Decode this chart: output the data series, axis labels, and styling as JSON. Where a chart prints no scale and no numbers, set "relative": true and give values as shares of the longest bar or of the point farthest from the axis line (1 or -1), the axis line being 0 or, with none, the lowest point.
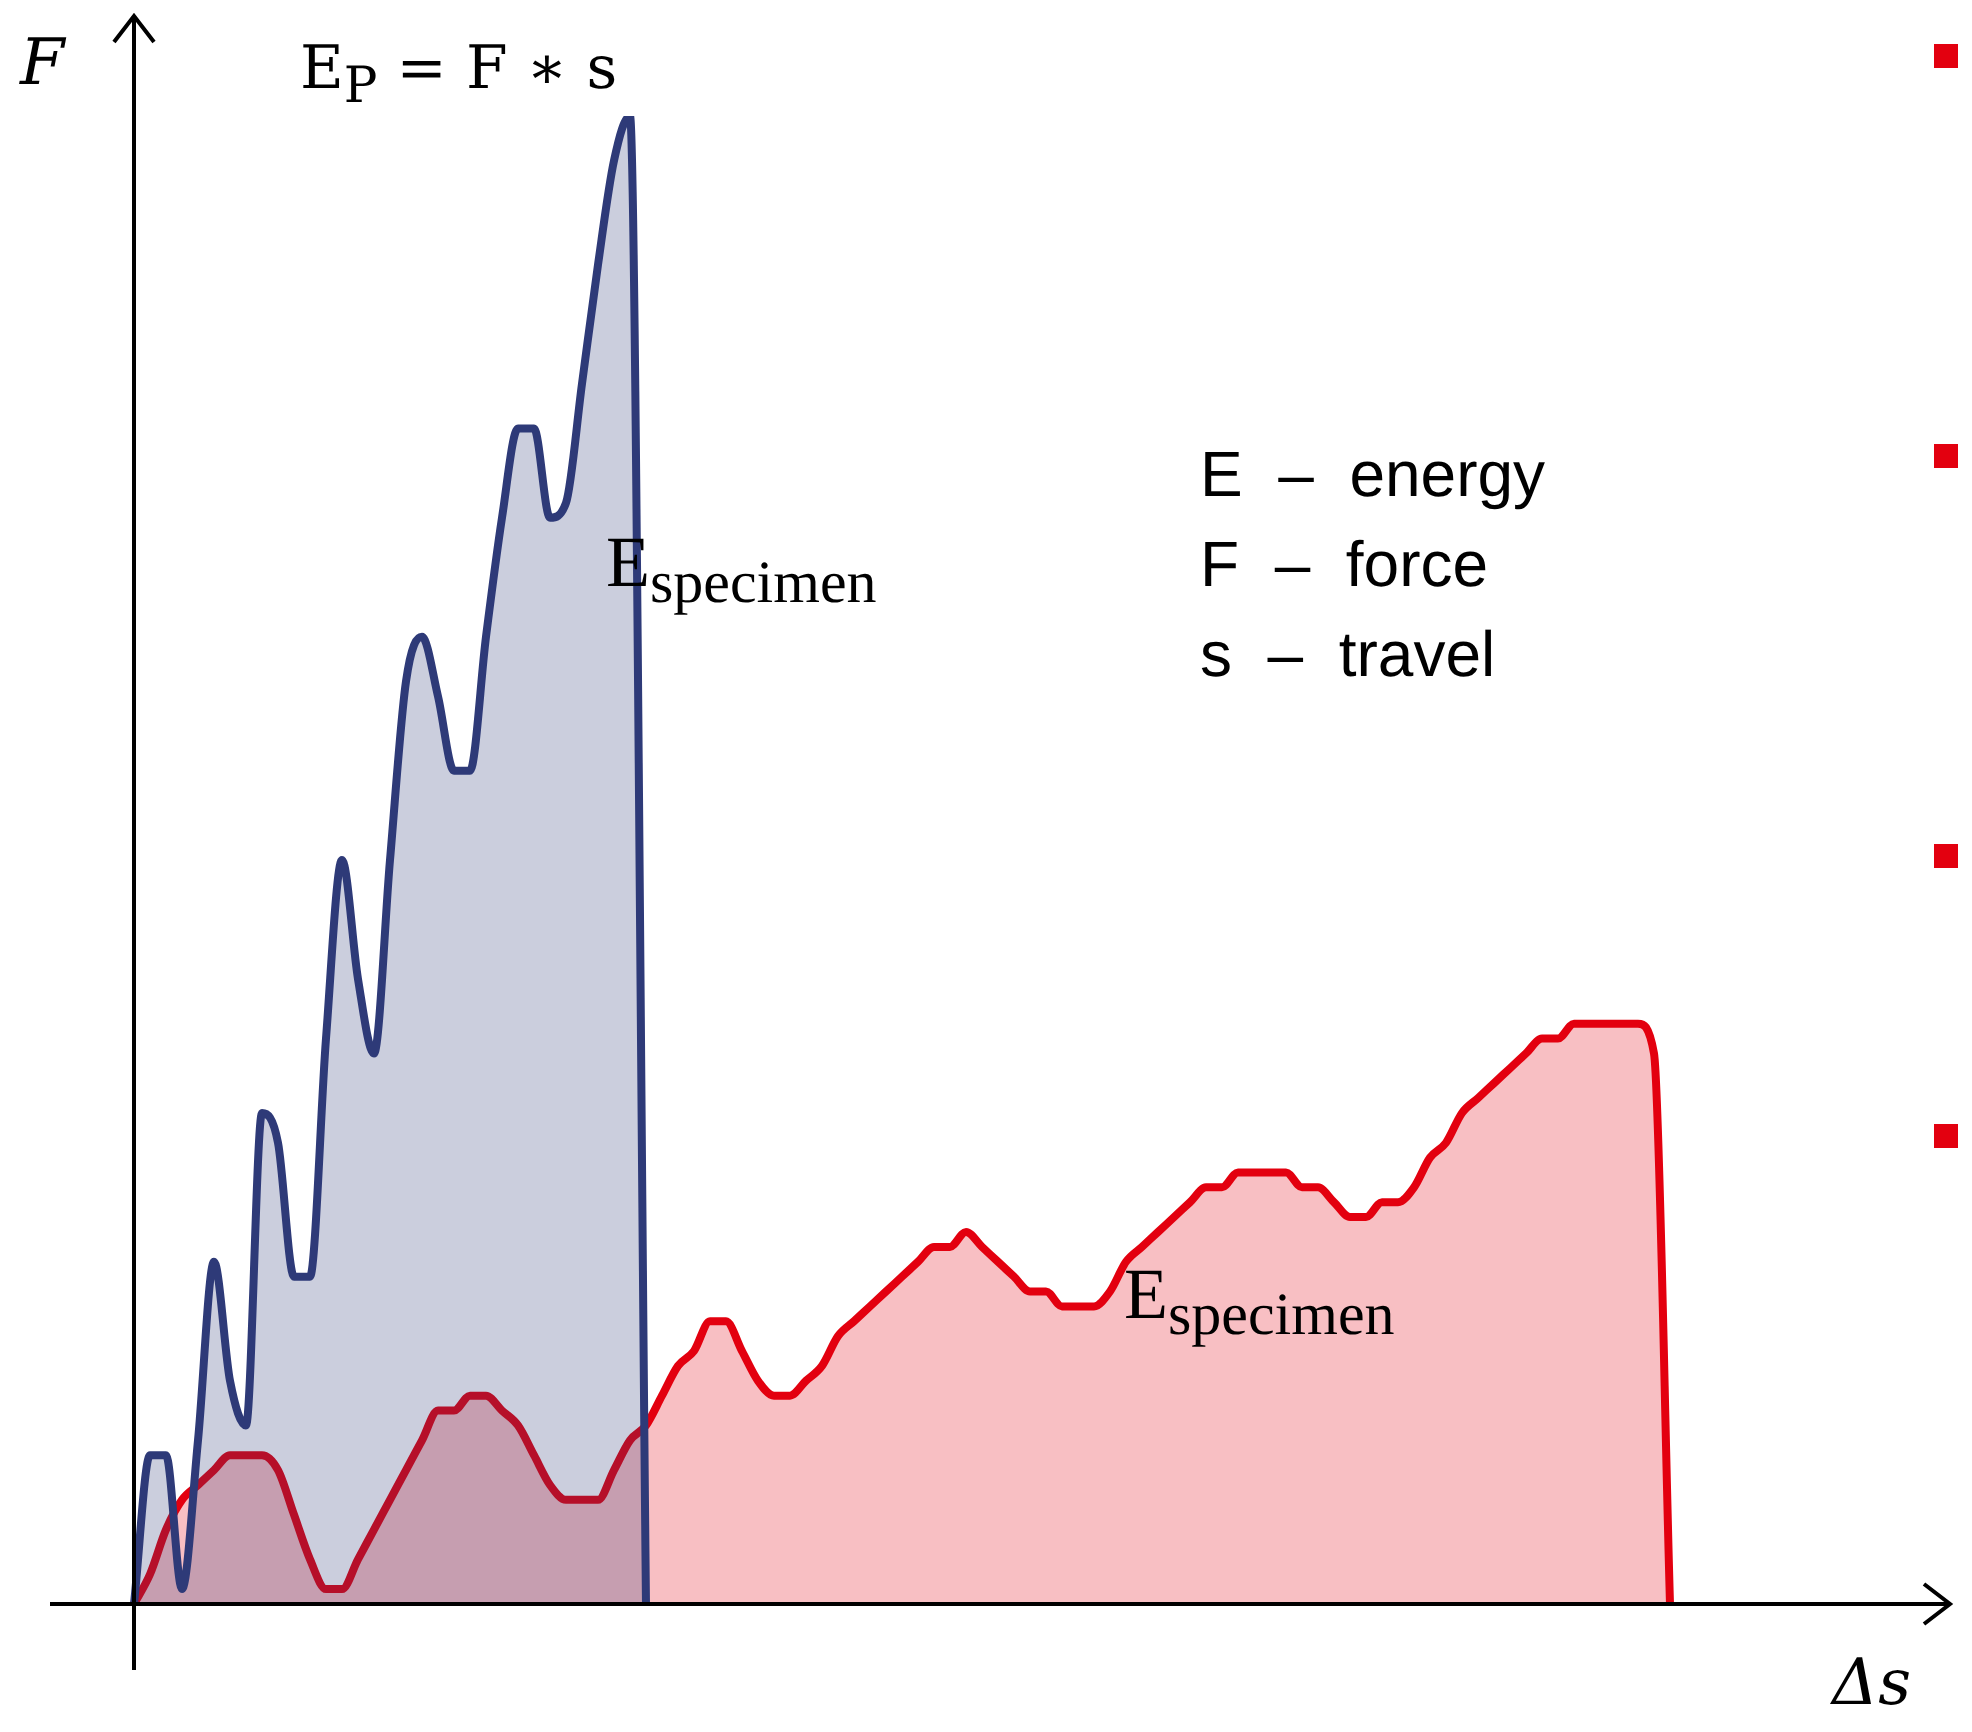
{
  "chart_data": {
    "type": "area",
    "relative": true,
    "xlabel": "Δs",
    "ylabel": "F",
    "legend": false,
    "marker": "none",
    "categories": [
      null,
      null,
      null,
      null,
      null,
      null,
      null,
      null,
      null,
      null,
      null,
      null,
      null,
      null,
      null,
      null,
      null,
      null,
      null,
      null,
      null,
      null,
      null,
      null,
      null,
      null,
      null,
      null,
      null,
      null,
      null,
      null,
      null,
      null,
      null,
      null,
      null,
      null,
      null,
      null,
      null,
      null,
      null,
      null,
      null,
      null,
      null,
      null,
      null,
      null,
      null,
      null,
      null,
      null,
      null,
      null,
      null,
      null,
      null,
      null,
      null,
      null,
      null,
      null,
      null,
      null,
      null,
      null,
      null,
      null,
      null,
      null,
      null,
      null,
      null,
      null,
      null,
      null,
      null,
      null,
      null,
      null,
      null,
      null,
      null,
      null,
      null,
      null,
      null,
      null,
      null,
      null,
      null,
      null,
      null,
      null,
      null
    ],
    "series": [
      {
        "color": "#2e3a78",
        "values": [
          0,
          0.1,
          0.1,
          0.01,
          0.11,
          0.23,
          0.15,
          0.12,
          0.33,
          0.31,
          0.22,
          0.22,
          0.38,
          0.5,
          0.42,
          0.37,
          0.5,
          0.62,
          0.65,
          0.61,
          0.56,
          0.56,
          0.65,
          0.73,
          0.79,
          0.79,
          0.73,
          0.74,
          0.82,
          0.9,
          0.97,
          1,
          0,
          null,
          null,
          null,
          null,
          null,
          null,
          null,
          null,
          null,
          null,
          null,
          null,
          null,
          null,
          null,
          null,
          null,
          null,
          null,
          null,
          null,
          null,
          null,
          null,
          null,
          null,
          null,
          null,
          null,
          null,
          null,
          null,
          null,
          null,
          null,
          null,
          null,
          null,
          null,
          null,
          null,
          null,
          null,
          null,
          null,
          null,
          null,
          null,
          null,
          null,
          null,
          null,
          null,
          null,
          null,
          null,
          null,
          null,
          null,
          null,
          null,
          null,
          null,
          null
        ]
      },
      {
        "color": "#e3000f",
        "values": [
          0,
          0.02,
          0.05,
          0.07,
          0.08,
          0.09,
          0.1,
          0.1,
          0.1,
          0.09,
          0.06,
          0.03,
          0.01,
          0.01,
          0.03,
          0.05,
          0.07,
          0.09,
          0.11,
          0.13,
          0.13,
          0.14,
          0.14,
          0.13,
          0.12,
          0.1,
          0.08,
          0.07,
          0.07,
          0.07,
          0.09,
          0.11,
          0.12,
          0.14,
          0.16,
          0.17,
          0.19,
          0.19,
          0.17,
          0.15,
          0.14,
          0.14,
          0.15,
          0.16,
          0.18,
          0.19,
          0.2,
          0.21,
          0.22,
          0.23,
          0.24,
          0.24,
          0.25,
          0.24,
          0.23,
          0.22,
          0.21,
          0.21,
          0.2,
          0.2,
          0.2,
          0.21,
          0.23,
          0.24,
          0.25,
          0.26,
          0.27,
          0.28,
          0.28,
          0.29,
          0.29,
          0.29,
          0.29,
          0.28,
          0.28,
          0.27,
          0.26,
          0.26,
          0.27,
          0.27,
          0.28,
          0.3,
          0.31,
          0.33,
          0.34,
          0.35,
          0.36,
          0.37,
          0.38,
          0.38,
          0.39,
          0.39,
          0.39,
          0.39,
          0.39,
          0.37,
          0
        ]
      }
    ],
    "annotations": [
      "E$_{P}$ = F ∗ s",
      "E$_{specimen}$",
      "E$_{specimen}$",
      "E  –  energy",
      "F  –  force",
      "s  –  travel"
    ]
  }
}
